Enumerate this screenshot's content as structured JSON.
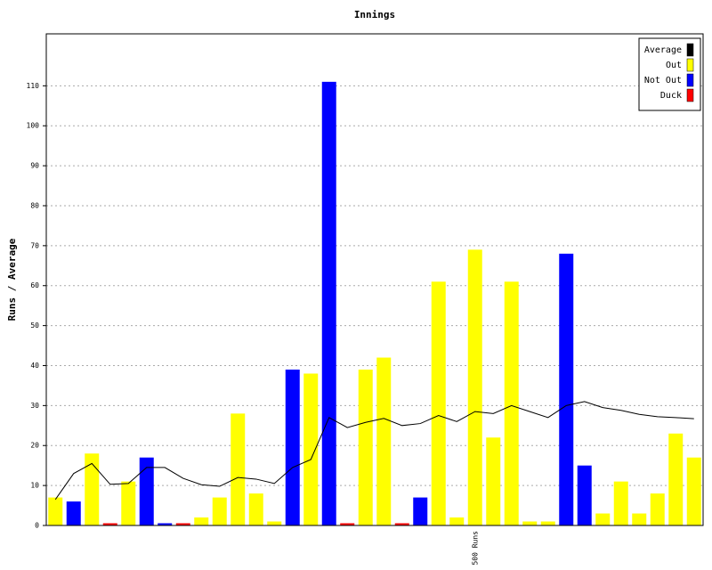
{
  "chart_data": {
    "type": "bar",
    "title": "Innings",
    "y_label": "Runs / Average",
    "categories": [
      null,
      null,
      null,
      null,
      null,
      null,
      null,
      null,
      null,
      null,
      null,
      null,
      null,
      null,
      null,
      null,
      null,
      null,
      null,
      null,
      null,
      null,
      null,
      "500 Runs",
      null,
      null,
      null,
      null,
      null,
      null,
      null,
      null,
      null,
      null,
      null,
      null
    ],
    "series": [
      {
        "name": "Average",
        "color": "#000000",
        "type": "line",
        "values": [
          6.5,
          13,
          15.5,
          10.3,
          10.5,
          14.5,
          14.5,
          11.8,
          10.2,
          9.8,
          12,
          11.6,
          10.5,
          14.5,
          16.5,
          27,
          24.5,
          25.8,
          26.8,
          25,
          25.5,
          27.5,
          26,
          28.5,
          28,
          30,
          28.5,
          27,
          30,
          31,
          29.5,
          28.8,
          27.8,
          27.2,
          27,
          26.7
        ]
      },
      {
        "name": "Out",
        "color": "#ffff00",
        "type": "bar",
        "values": [
          7,
          null,
          18,
          null,
          11,
          null,
          null,
          null,
          2,
          7,
          28,
          8,
          1,
          null,
          38,
          null,
          null,
          39,
          42,
          null,
          null,
          61,
          2,
          69,
          22,
          61,
          1,
          1,
          null,
          null,
          3,
          11,
          3,
          8,
          23,
          17
        ]
      },
      {
        "name": "Not Out",
        "color": "#0000ff",
        "type": "bar",
        "values": [
          null,
          6,
          null,
          null,
          null,
          17,
          0,
          null,
          null,
          null,
          null,
          null,
          null,
          39,
          null,
          111,
          null,
          null,
          null,
          null,
          7,
          null,
          null,
          null,
          null,
          null,
          null,
          null,
          68,
          15,
          null,
          null,
          null,
          null,
          null,
          null
        ]
      },
      {
        "name": "Duck",
        "color": "#ff0000",
        "type": "bar",
        "values": [
          null,
          null,
          null,
          0,
          null,
          null,
          null,
          0,
          null,
          null,
          null,
          null,
          null,
          null,
          null,
          null,
          0,
          null,
          null,
          0,
          null,
          null,
          null,
          null,
          null,
          null,
          null,
          null,
          null,
          null,
          null,
          null,
          null,
          null,
          null,
          null
        ]
      }
    ],
    "ylim": [
      0,
      123
    ],
    "yticks": [
      0,
      10,
      20,
      30,
      40,
      50,
      60,
      70,
      80,
      90,
      100,
      110
    ],
    "grid": true,
    "legend": "top-right"
  }
}
